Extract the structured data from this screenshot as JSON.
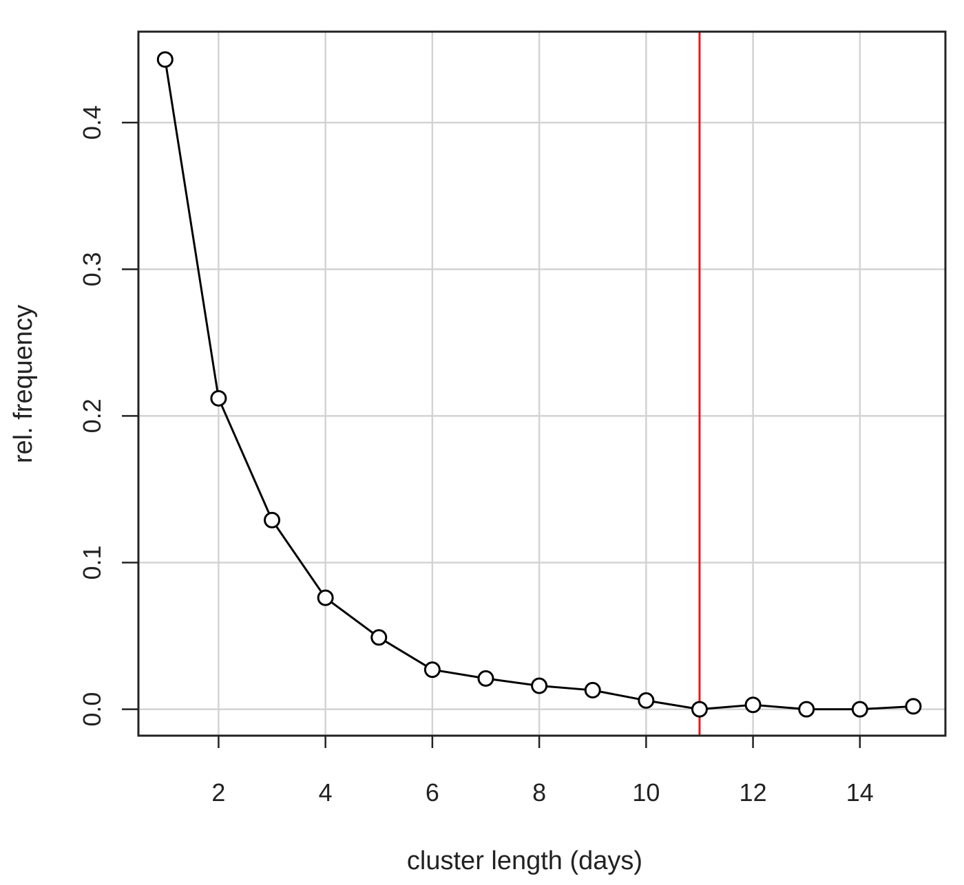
{
  "chart_data": {
    "type": "line",
    "title": "",
    "xlabel": "cluster length (days)",
    "ylabel": "rel. frequency",
    "x": [
      1,
      2,
      3,
      4,
      5,
      6,
      7,
      8,
      9,
      10,
      11,
      12,
      13,
      14,
      15
    ],
    "series": [
      {
        "values": [
          0.443,
          0.212,
          0.129,
          0.076,
          0.049,
          0.027,
          0.021,
          0.016,
          0.013,
          0.006,
          0.0,
          0.003,
          0.0,
          0.0,
          0.002
        ]
      }
    ],
    "xlim": [
      0.5,
      15.6
    ],
    "ylim": [
      -0.018,
      0.462
    ],
    "xticks": [
      "2",
      "4",
      "6",
      "8",
      "10",
      "12",
      "14"
    ],
    "yticks": [
      "0.0",
      "0.1",
      "0.2",
      "0.3",
      "0.4"
    ],
    "grid": true,
    "marker": "open-circle",
    "line_color": "#000000",
    "reference_line": {
      "x": 11,
      "color": "#e31a1c"
    }
  }
}
